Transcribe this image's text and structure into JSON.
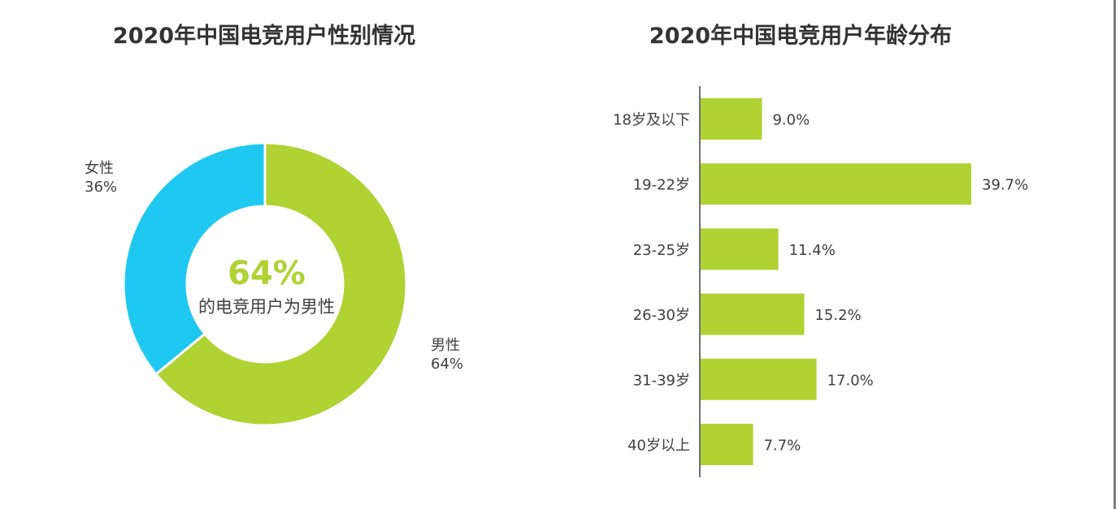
{
  "chart_data": [
    {
      "type": "pie",
      "title": "2020年中国电竞用户性别情况",
      "slices": [
        {
          "name": "男性",
          "value": 64,
          "label": "64%",
          "color": "#b0d232"
        },
        {
          "name": "女性",
          "value": 36,
          "label": "36%",
          "color": "#1fc8f0"
        }
      ],
      "center_value": "64%",
      "center_text": "的电竞用户为男性",
      "center_value_color": "#b0d232"
    },
    {
      "type": "bar",
      "orientation": "horizontal",
      "title": "2020年中国电竞用户年龄分布",
      "categories": [
        "18岁及以下",
        "19-22岁",
        "23-25岁",
        "26-30岁",
        "31-39岁",
        "40岁以上"
      ],
      "values": [
        9.0,
        39.7,
        11.4,
        15.2,
        17.0,
        7.7
      ],
      "value_labels": [
        "9.0%",
        "39.7%",
        "11.4%",
        "15.2%",
        "17.0%",
        "7.7%"
      ],
      "color": "#b0d232",
      "xlim": [
        0,
        40
      ]
    }
  ]
}
